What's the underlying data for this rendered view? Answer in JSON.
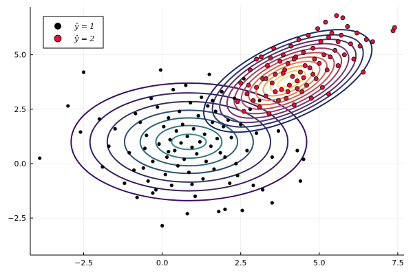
{
  "chart_data": {
    "type": "scatter",
    "title": "",
    "xlabel": "",
    "ylabel": "",
    "xlim": [
      -4.2,
      7.7
    ],
    "ylim": [
      -4.2,
      7.2
    ],
    "xticks": [
      -2.5,
      0.0,
      2.5,
      5.0,
      7.5
    ],
    "xtick_labels": [
      "−2.5",
      "0.0",
      "2.5",
      "5.0",
      "7.5"
    ],
    "yticks": [
      -2.5,
      0.0,
      2.5,
      5.0
    ],
    "ytick_labels": [
      "−2.5",
      "0.0",
      "2.5",
      "5.0"
    ],
    "grid": true,
    "legend_position": "top-left",
    "series": [
      {
        "name": "ŷ = 1",
        "color": "#000000",
        "mean": [
          1.0,
          1.0
        ],
        "std": [
          1.0,
          1.0
        ],
        "points": [
          [
            -3.9,
            0.25
          ],
          [
            -3.0,
            2.65
          ],
          [
            -2.6,
            1.45
          ],
          [
            -2.5,
            4.2
          ],
          [
            -2.0,
            2.05
          ],
          [
            -1.9,
            -0.15
          ],
          [
            -1.7,
            0.8
          ],
          [
            -1.5,
            1.6
          ],
          [
            -1.2,
            -0.9
          ],
          [
            -1.05,
            0.5
          ],
          [
            -0.9,
            -0.3
          ],
          [
            -0.85,
            2.3
          ],
          [
            -0.8,
            -1.55
          ],
          [
            -0.7,
            1.9
          ],
          [
            -0.6,
            -0.2
          ],
          [
            -0.55,
            0.7
          ],
          [
            -0.5,
            1.3
          ],
          [
            -0.45,
            -0.8
          ],
          [
            -0.35,
            3.0
          ],
          [
            -0.3,
            0.1
          ],
          [
            -0.2,
            -1.2
          ],
          [
            -0.15,
            2.6
          ],
          [
            -0.1,
            0.9
          ],
          [
            -0.05,
            4.3
          ],
          [
            0.0,
            -2.85
          ],
          [
            0.05,
            1.7
          ],
          [
            0.1,
            -0.5
          ],
          [
            0.15,
            0.3
          ],
          [
            0.2,
            2.1
          ],
          [
            0.25,
            1.1
          ],
          [
            0.3,
            -1.0
          ],
          [
            0.35,
            3.4
          ],
          [
            0.4,
            0.6
          ],
          [
            0.45,
            1.5
          ],
          [
            0.5,
            -0.1
          ],
          [
            0.55,
            2.4
          ],
          [
            0.6,
            0.95
          ],
          [
            0.65,
            1.8
          ],
          [
            0.7,
            0.2
          ],
          [
            0.75,
            3.6
          ],
          [
            0.8,
            1.25
          ],
          [
            0.85,
            -0.4
          ],
          [
            0.9,
            2.8
          ],
          [
            0.95,
            0.75
          ],
          [
            1.0,
            1.6
          ],
          [
            1.05,
            -1.5
          ],
          [
            1.1,
            0.45
          ],
          [
            1.15,
            2.2
          ],
          [
            1.2,
            1.0
          ],
          [
            1.25,
            3.05
          ],
          [
            1.3,
            -0.7
          ],
          [
            1.35,
            1.35
          ],
          [
            1.4,
            0.1
          ],
          [
            1.45,
            2.65
          ],
          [
            1.5,
            4.1
          ],
          [
            1.55,
            0.8
          ],
          [
            1.6,
            1.9
          ],
          [
            1.65,
            -0.25
          ],
          [
            1.7,
            2.4
          ],
          [
            1.75,
            1.15
          ],
          [
            1.8,
            -2.2
          ],
          [
            1.85,
            0.5
          ],
          [
            1.9,
            3.3
          ],
          [
            1.95,
            1.7
          ],
          [
            2.0,
            0.3
          ],
          [
            2.1,
            2.0
          ],
          [
            2.15,
            -0.9
          ],
          [
            2.2,
            1.2
          ],
          [
            2.3,
            3.0
          ],
          [
            2.35,
            0.0
          ],
          [
            2.4,
            -0.55
          ],
          [
            2.5,
            1.8
          ],
          [
            2.55,
            -2.15
          ],
          [
            2.6,
            3.9
          ],
          [
            2.7,
            0.6
          ],
          [
            2.8,
            2.5
          ],
          [
            2.9,
            -1.0
          ],
          [
            3.0,
            1.4
          ],
          [
            3.1,
            2.9
          ],
          [
            3.2,
            -1.2
          ],
          [
            3.5,
            0.3
          ],
          [
            3.5,
            -1.8
          ],
          [
            3.7,
            1.5
          ],
          [
            4.3,
            0.6
          ],
          [
            4.4,
            -0.8
          ],
          [
            4.5,
            0.2
          ],
          [
            -0.3,
            -1.35
          ],
          [
            0.8,
            -2.3
          ],
          [
            2.0,
            -2.1
          ],
          [
            0.2,
            0.55
          ],
          [
            1.6,
            2.9
          ],
          [
            0.95,
            -0.95
          ]
        ]
      },
      {
        "name": "ŷ = 2",
        "color": "#d6163a",
        "mean": [
          4.0,
          4.0
        ],
        "std": [
          1.0,
          1.0
        ],
        "points": [
          [
            2.4,
            2.85
          ],
          [
            2.5,
            3.7
          ],
          [
            2.6,
            2.4
          ],
          [
            2.7,
            3.2
          ],
          [
            2.8,
            4.3
          ],
          [
            2.9,
            2.9
          ],
          [
            3.0,
            3.5
          ],
          [
            3.1,
            2.6
          ],
          [
            3.15,
            4.9
          ],
          [
            3.2,
            3.9
          ],
          [
            3.3,
            3.1
          ],
          [
            3.35,
            4.5
          ],
          [
            3.4,
            2.3
          ],
          [
            3.5,
            3.7
          ],
          [
            3.55,
            5.3
          ],
          [
            3.6,
            4.1
          ],
          [
            3.7,
            2.9
          ],
          [
            3.75,
            4.7
          ],
          [
            3.8,
            3.4
          ],
          [
            3.85,
            5.0
          ],
          [
            3.9,
            4.3
          ],
          [
            3.95,
            3.0
          ],
          [
            4.0,
            4.6
          ],
          [
            4.05,
            3.6
          ],
          [
            4.1,
            5.4
          ],
          [
            4.15,
            4.0
          ],
          [
            4.2,
            2.7
          ],
          [
            4.25,
            4.9
          ],
          [
            4.3,
            3.8
          ],
          [
            4.35,
            5.7
          ],
          [
            4.4,
            4.2
          ],
          [
            4.45,
            3.3
          ],
          [
            4.5,
            5.1
          ],
          [
            4.55,
            4.5
          ],
          [
            4.6,
            3.6
          ],
          [
            4.65,
            5.9
          ],
          [
            4.7,
            4.4
          ],
          [
            4.75,
            3.0
          ],
          [
            4.8,
            5.3
          ],
          [
            4.85,
            4.8
          ],
          [
            4.9,
            3.9
          ],
          [
            4.95,
            6.2
          ],
          [
            5.0,
            4.6
          ],
          [
            5.05,
            5.6
          ],
          [
            5.1,
            3.5
          ],
          [
            5.15,
            5.0
          ],
          [
            5.2,
            6.5
          ],
          [
            5.25,
            4.3
          ],
          [
            5.3,
            5.8
          ],
          [
            5.35,
            4.9
          ],
          [
            5.4,
            6.0
          ],
          [
            5.5,
            5.2
          ],
          [
            5.55,
            6.8
          ],
          [
            5.6,
            4.5
          ],
          [
            5.7,
            5.9
          ],
          [
            5.75,
            6.7
          ],
          [
            5.8,
            5.0
          ],
          [
            5.9,
            6.3
          ],
          [
            6.0,
            5.5
          ],
          [
            6.1,
            4.8
          ],
          [
            6.2,
            6.0
          ],
          [
            6.3,
            5.4
          ],
          [
            6.4,
            4.2
          ],
          [
            6.5,
            5.7
          ],
          [
            6.7,
            5.6
          ],
          [
            7.35,
            6.1
          ],
          [
            7.4,
            6.25
          ],
          [
            3.0,
            4.8
          ],
          [
            3.6,
            3.3
          ],
          [
            4.2,
            4.8
          ],
          [
            3.3,
            3.9
          ],
          [
            4.8,
            4.1
          ],
          [
            5.3,
            3.2
          ],
          [
            2.75,
            3.6
          ],
          [
            4.0,
            3.3
          ],
          [
            4.5,
            3.95
          ],
          [
            3.85,
            4.15
          ],
          [
            4.3,
            3.45
          ],
          [
            5.6,
            5.6
          ],
          [
            3.45,
            4.85
          ]
        ]
      }
    ],
    "contours": [
      {
        "component": "ŷ = 1",
        "center": [
          0.85,
          1.0
        ],
        "radii": [
          [
            0.55,
            0.35
          ],
          [
            1.05,
            0.75
          ],
          [
            1.55,
            1.1
          ],
          [
            2.05,
            1.45
          ],
          [
            2.6,
            1.85
          ],
          [
            3.15,
            2.25
          ],
          [
            3.75,
            2.7
          ]
        ],
        "colors": [
          "#3e8a8c",
          "#367580",
          "#2f6377",
          "#2e4f6f",
          "#332f66",
          "#3a2062",
          "#3c1060"
        ]
      },
      {
        "component": "ŷ = 2",
        "center": [
          4.0,
          3.8
        ],
        "rotation_deg": -25,
        "radii": [
          [
            0.35,
            0.2
          ],
          [
            0.6,
            0.35
          ],
          [
            0.85,
            0.5
          ],
          [
            1.1,
            0.65
          ],
          [
            1.35,
            0.8
          ],
          [
            1.6,
            0.95
          ],
          [
            1.85,
            1.1
          ],
          [
            2.1,
            1.25
          ],
          [
            2.35,
            1.4
          ],
          [
            2.6,
            1.55
          ],
          [
            2.9,
            1.72
          ]
        ],
        "colors": [
          "#fbe085",
          "#f8c866",
          "#f4a256",
          "#e97f4c",
          "#d9604d",
          "#c04a55",
          "#9c3c5f",
          "#7a3567",
          "#56316c",
          "#33326d",
          "#1c2b69"
        ]
      }
    ]
  }
}
